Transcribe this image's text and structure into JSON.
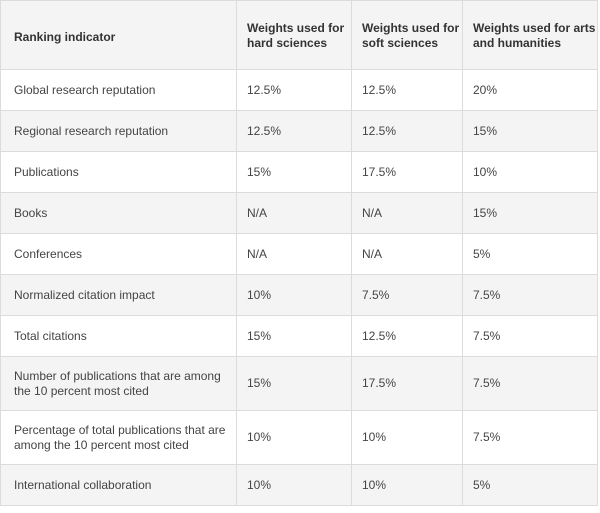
{
  "table": {
    "headers": [
      "Ranking indicator",
      "Weights used for hard sciences",
      "Weights used for soft sciences",
      "Weights used for arts and humanities"
    ],
    "rows": [
      [
        "Global research reputation",
        "12.5%",
        "12.5%",
        "20%"
      ],
      [
        "Regional research reputation",
        "12.5%",
        "12.5%",
        "15%"
      ],
      [
        "Publications",
        "15%",
        "17.5%",
        "10%"
      ],
      [
        "Books",
        "N/A",
        "N/A",
        "15%"
      ],
      [
        "Conferences",
        "N/A",
        "N/A",
        "5%"
      ],
      [
        "Normalized citation impact",
        "10%",
        "7.5%",
        "7.5%"
      ],
      [
        "Total citations",
        "15%",
        "12.5%",
        "7.5%"
      ],
      [
        "Number of publications that are among the 10 percent most cited",
        "15%",
        "17.5%",
        "7.5%"
      ],
      [
        "Percentage of total publications that are among the 10 percent most cited",
        "10%",
        "10%",
        "7.5%"
      ],
      [
        "International collaboration",
        "10%",
        "10%",
        "5%"
      ]
    ]
  }
}
